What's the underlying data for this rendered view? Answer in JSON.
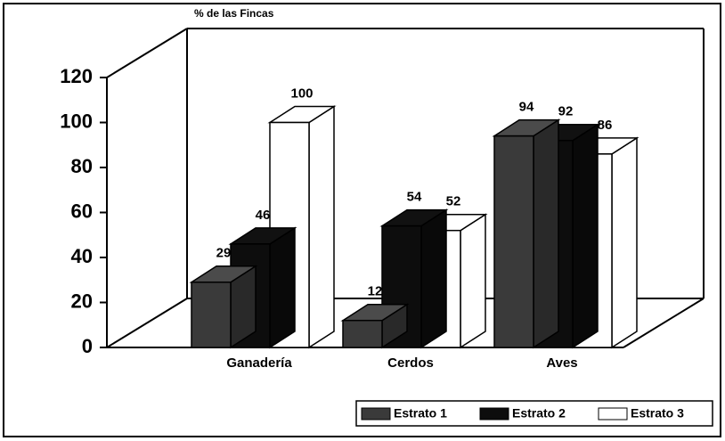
{
  "chart_data": {
    "type": "bar3d",
    "axis_label": "% de las Fincas",
    "categories": [
      "Ganadería",
      "Cerdos",
      "Aves"
    ],
    "series": [
      {
        "name": "Estrato 1",
        "color": "#3a3a3a",
        "values": [
          29,
          12,
          94
        ]
      },
      {
        "name": "Estrato 2",
        "color": "#0d0d0d",
        "values": [
          46,
          54,
          92
        ]
      },
      {
        "name": "Estrato 3",
        "color": "#ffffff",
        "values": [
          100,
          52,
          86
        ]
      }
    ],
    "ylim": [
      0,
      120
    ],
    "yticks": [
      0,
      20,
      40,
      60,
      80,
      100,
      120
    ]
  }
}
